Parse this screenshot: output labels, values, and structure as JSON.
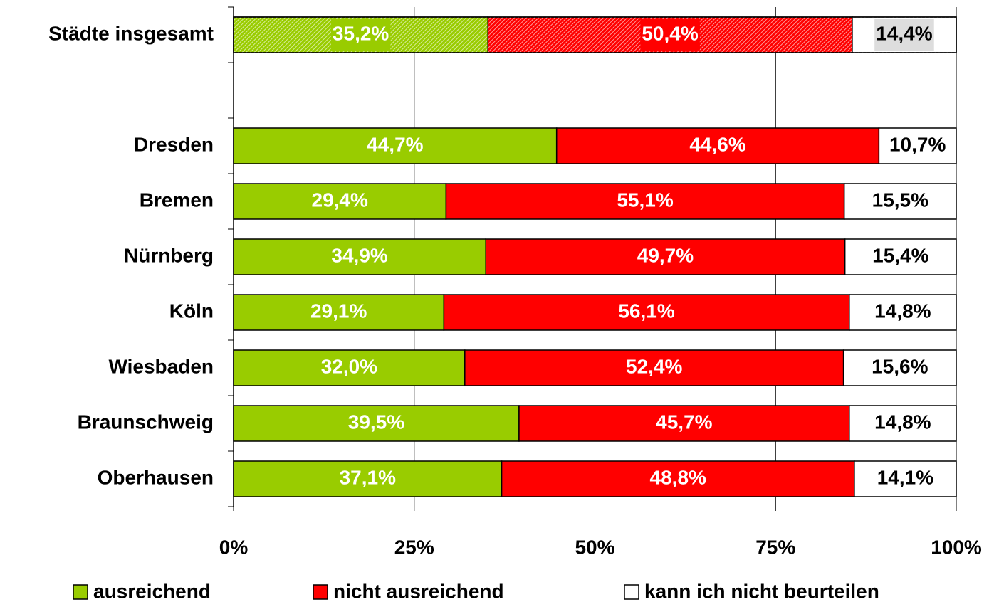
{
  "chart_data": {
    "type": "stacked_bar_horizontal",
    "categories": [
      "Städte insgesamt",
      null,
      "Dresden",
      "Bremen",
      "Nürnberg",
      "Köln",
      "Wiesbaden",
      "Braunschweig",
      "Oberhausen"
    ],
    "hatched": [
      true,
      false,
      false,
      false,
      false,
      false,
      false,
      false,
      false
    ],
    "series": [
      {
        "name": "ausreichend",
        "color": "#99cc00",
        "label_color": "#ffffff",
        "values": [
          35.2,
          null,
          44.7,
          29.4,
          34.9,
          29.1,
          32.0,
          39.5,
          37.1
        ],
        "value_labels": [
          "35,2%",
          null,
          "44,7%",
          "29,4%",
          "34,9%",
          "29,1%",
          "32,0%",
          "39,5%",
          "37,1%"
        ]
      },
      {
        "name": "nicht ausreichend",
        "color": "#ff0000",
        "label_color": "#ffffff",
        "values": [
          50.4,
          null,
          44.6,
          55.1,
          49.7,
          56.1,
          52.4,
          45.7,
          48.8
        ],
        "value_labels": [
          "50,4%",
          null,
          "44,6%",
          "55,1%",
          "49,7%",
          "56,1%",
          "52,4%",
          "45,7%",
          "48,8%"
        ]
      },
      {
        "name": "kann ich nicht beurteilen",
        "color": "#ffffff",
        "label_color": "#000000",
        "values": [
          14.4,
          null,
          10.7,
          15.5,
          15.4,
          14.8,
          15.6,
          14.8,
          14.1
        ],
        "value_labels": [
          "14,4%",
          null,
          "10,7%",
          "15,5%",
          "15,4%",
          "14,8%",
          "15,6%",
          "14,8%",
          "14,1%"
        ]
      }
    ],
    "xlim": [
      0,
      100
    ],
    "xticks": [
      {
        "value": 0,
        "label": "0%"
      },
      {
        "value": 25,
        "label": "25%"
      },
      {
        "value": 50,
        "label": "50%"
      },
      {
        "value": 75,
        "label": "75%"
      },
      {
        "value": 100,
        "label": "100%"
      }
    ],
    "grid": true,
    "legend": "bottom"
  }
}
